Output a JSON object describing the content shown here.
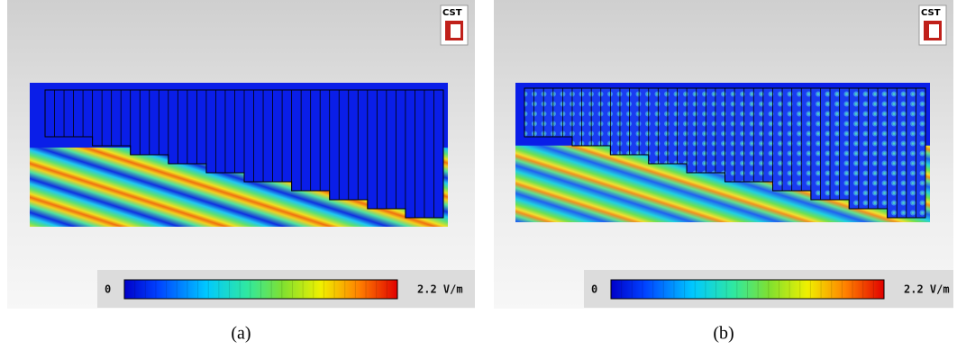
{
  "panels": [
    {
      "logo": "CST",
      "colorbar": {
        "min_label": "0",
        "max_label": "2.2 V/m"
      },
      "caption": "(a)"
    },
    {
      "logo": "CST",
      "colorbar": {
        "min_label": "0",
        "max_label": "2.2 V/m"
      },
      "caption": "(b)"
    }
  ]
}
